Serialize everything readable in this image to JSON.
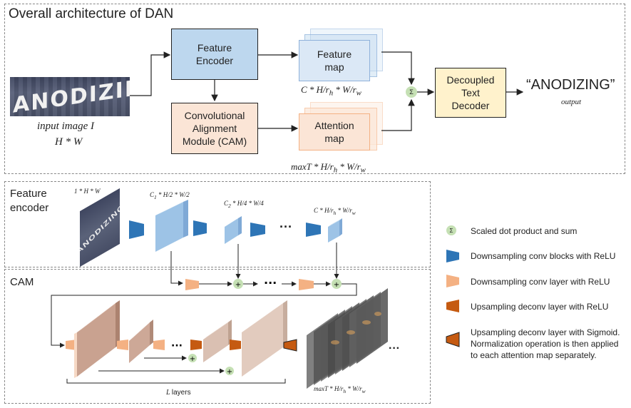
{
  "top": {
    "title": "Overall architecture of DAN",
    "input_image_text": "ANODIZING",
    "input_label_line1": "input image I",
    "input_label_line2": "H * W",
    "feature_encoder_label": "Feature\nEncoder",
    "cam_label": "Convolutional\nAlignment\nModule (CAM)",
    "feature_map_label": "Feature\nmap",
    "feature_map_dims": "C * H/r_h * W/r_w",
    "attention_map_label": "Attention\nmap",
    "attention_map_dims": "maxT * H/r_h * W/r_w",
    "sum_symbol": "Σ",
    "decoder_label": "Decoupled\nText\nDecoder",
    "output_text": "“ANODIZING”",
    "output_caption": "output"
  },
  "encoder": {
    "title": "Feature\nencoder",
    "input_dims": "1 * H * W",
    "stage1_dims": "C1 * H/2 * W/2",
    "stage2_dims": "C2 * H/4 * W/4",
    "stage3_dims": "C * H/r_h * W/r_w",
    "ellipsis": "···"
  },
  "cam": {
    "title": "CAM",
    "layers_label": "L layers",
    "output_dims": "maxT * H/r_h * W/r_w",
    "ellipsis": "···"
  },
  "legend": [
    {
      "icon": "sum-circle-icon",
      "text": "Scaled dot product and sum"
    },
    {
      "icon": "blue-trapezoid-icon",
      "text": "Downsampling conv blocks with ReLU"
    },
    {
      "icon": "peach-trapezoid-icon",
      "text": "Downsampling conv layer with ReLU"
    },
    {
      "icon": "orange-trapezoid-icon",
      "text": "Upsampling deconv layer with ReLU"
    },
    {
      "icon": "dark-orange-trapezoid-icon",
      "text": "Upsampling deconv layer with Sigmoid. Normalization operation is then applied to each attention map separately."
    }
  ],
  "colors": {
    "encoder_fill": "#bdd7ee",
    "encoder_stroke": "#2f5597",
    "cam_fill": "#fbe5d6",
    "cam_stroke": "#843c0c",
    "decoder_fill": "#fff2cc",
    "sum_fill": "#c5e0b4",
    "blue_block": "#2e75b6",
    "peach_block": "#f4b183",
    "orange_block": "#c55a11"
  }
}
